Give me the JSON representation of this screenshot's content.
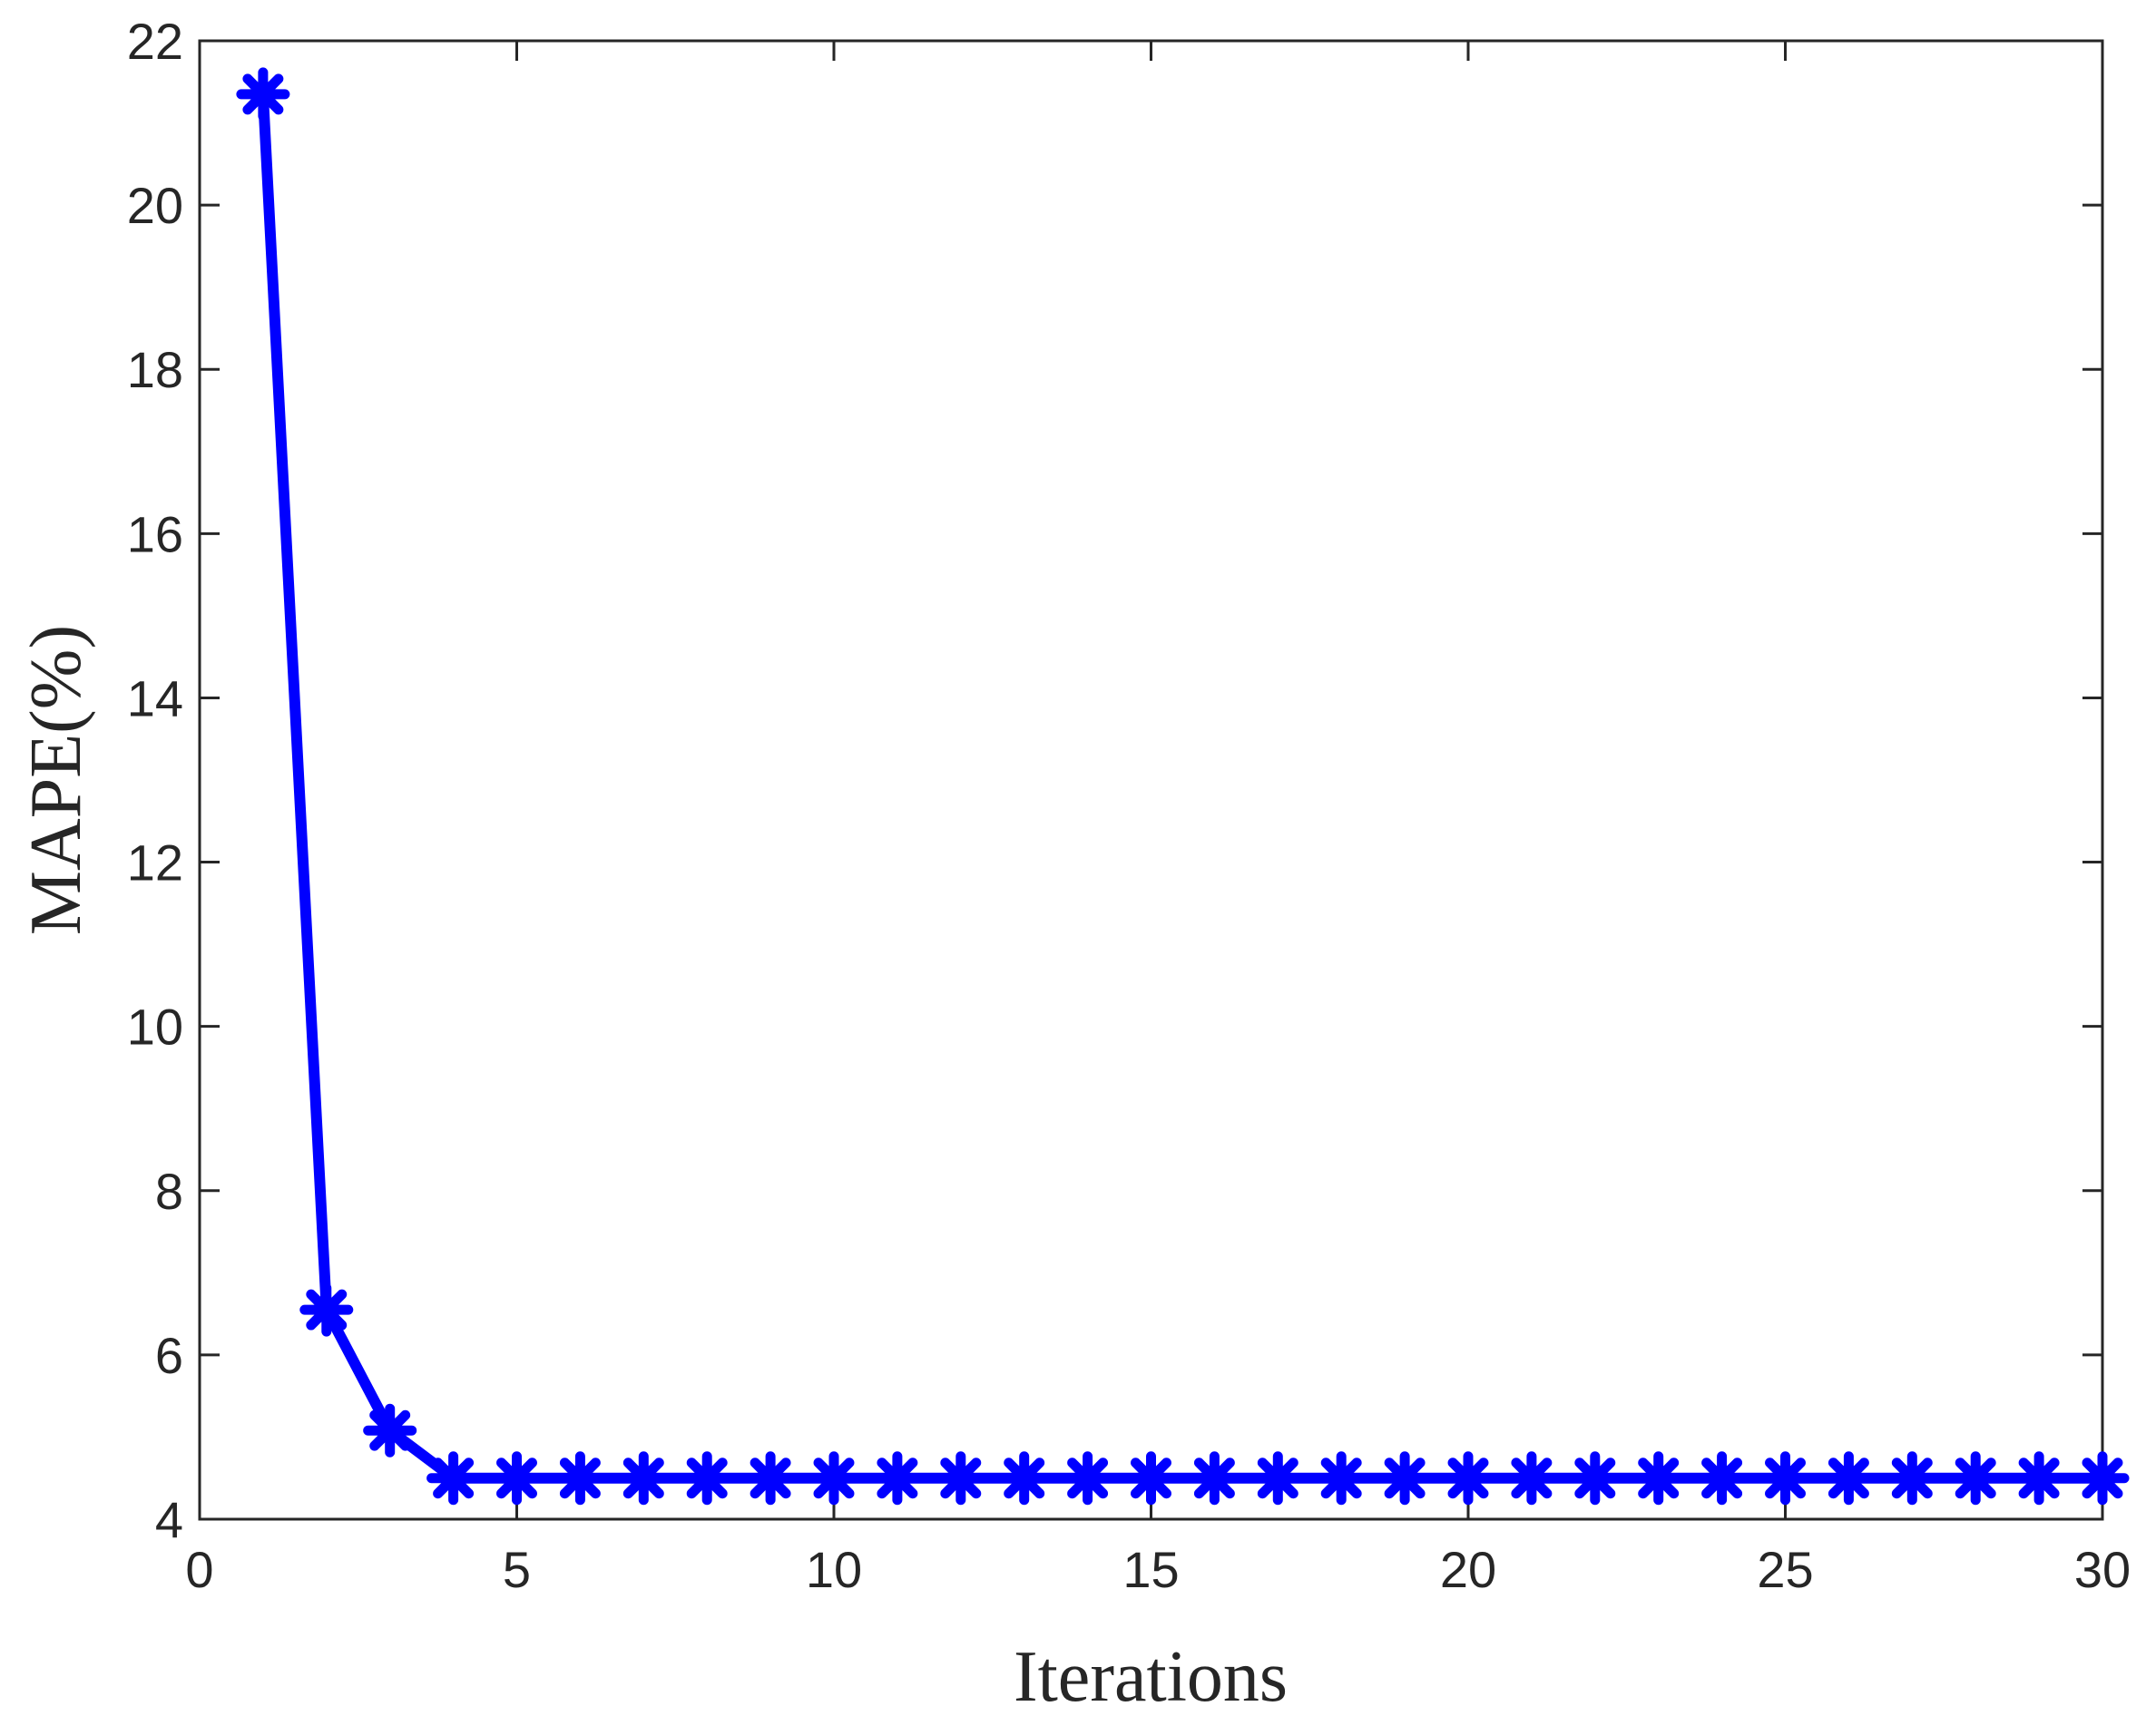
{
  "chart_data": {
    "type": "line",
    "xlabel": "Iterations",
    "ylabel": "MAPE(%)",
    "x": [
      1,
      2,
      3,
      4,
      5,
      6,
      7,
      8,
      9,
      10,
      11,
      12,
      13,
      14,
      15,
      16,
      17,
      18,
      19,
      20,
      21,
      22,
      23,
      24,
      25,
      26,
      27,
      28,
      29,
      30
    ],
    "series": [
      {
        "name": "MAPE",
        "color": "#0000ff",
        "values": [
          21.35,
          6.55,
          5.08,
          4.5,
          4.5,
          4.5,
          4.5,
          4.5,
          4.5,
          4.5,
          4.5,
          4.5,
          4.5,
          4.5,
          4.5,
          4.5,
          4.5,
          4.5,
          4.5,
          4.5,
          4.5,
          4.5,
          4.5,
          4.5,
          4.5,
          4.5,
          4.5,
          4.5,
          4.5,
          4.5
        ]
      }
    ],
    "xlim": [
      0,
      30
    ],
    "xticks": [
      0,
      5,
      10,
      15,
      20,
      25,
      30
    ],
    "ylim": [
      4,
      22
    ],
    "yticks": [
      4,
      6,
      8,
      10,
      12,
      14,
      16,
      18,
      20,
      22
    ],
    "grid": false
  }
}
